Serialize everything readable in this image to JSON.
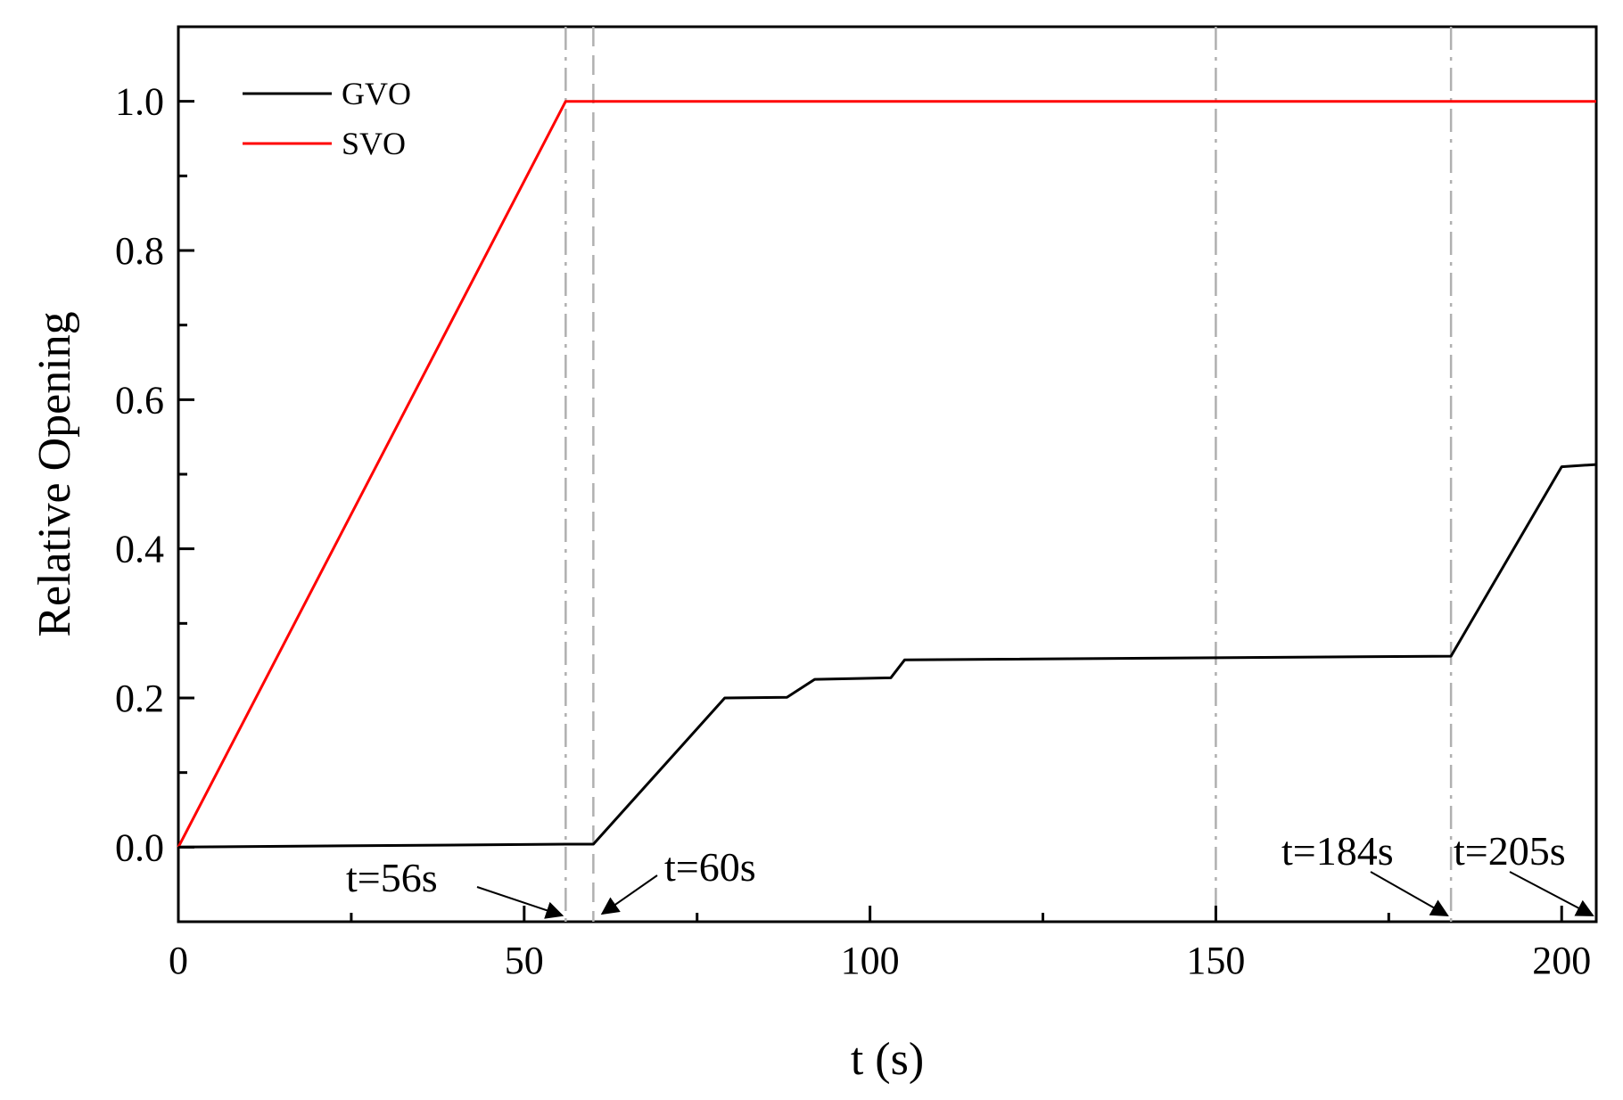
{
  "chart_data": {
    "type": "line",
    "xlabel": "t (s)",
    "ylabel": "Relative Opening",
    "xlim": [
      0,
      205
    ],
    "ylim": [
      -0.1,
      1.1
    ],
    "x_ticks": [
      0,
      50,
      100,
      150,
      200
    ],
    "x_tick_labels": [
      "0",
      "50",
      "100",
      "150",
      "200"
    ],
    "x_minor_step": 25,
    "y_ticks": [
      0.0,
      0.2,
      0.4,
      0.6,
      0.8,
      1.0
    ],
    "y_tick_labels": [
      "0.0",
      "0.2",
      "0.4",
      "0.6",
      "0.8",
      "1.0"
    ],
    "y_minor_step": 0.1,
    "grid": false,
    "legend_position": "top-left",
    "series": [
      {
        "name": "GVO",
        "color": "#000000",
        "points": [
          [
            0,
            0.0
          ],
          [
            56,
            0.004
          ],
          [
            60,
            0.004
          ],
          [
            79,
            0.2
          ],
          [
            88,
            0.201
          ],
          [
            92,
            0.225
          ],
          [
            103,
            0.227
          ],
          [
            105,
            0.251
          ],
          [
            184,
            0.256
          ],
          [
            200,
            0.51
          ],
          [
            205,
            0.513
          ]
        ]
      },
      {
        "name": "SVO",
        "color": "#ff0000",
        "points": [
          [
            0,
            0.0
          ],
          [
            56,
            1.0
          ],
          [
            205,
            1.0
          ]
        ]
      }
    ],
    "vertical_lines": [
      {
        "x": 56,
        "style": "dash-dot",
        "color": "#b0b0b0"
      },
      {
        "x": 60,
        "style": "dash",
        "color": "#b0b0b0"
      },
      {
        "x": 150,
        "style": "dash-dot",
        "color": "#b0b0b0"
      },
      {
        "x": 184,
        "style": "dash-dot",
        "color": "#b0b0b0"
      }
    ],
    "annotations": [
      {
        "text": "t=56s",
        "x": 56
      },
      {
        "text": "t=60s",
        "x": 60
      },
      {
        "text": "t=184s",
        "x": 184
      },
      {
        "text": "t=205s",
        "x": 205
      }
    ]
  }
}
